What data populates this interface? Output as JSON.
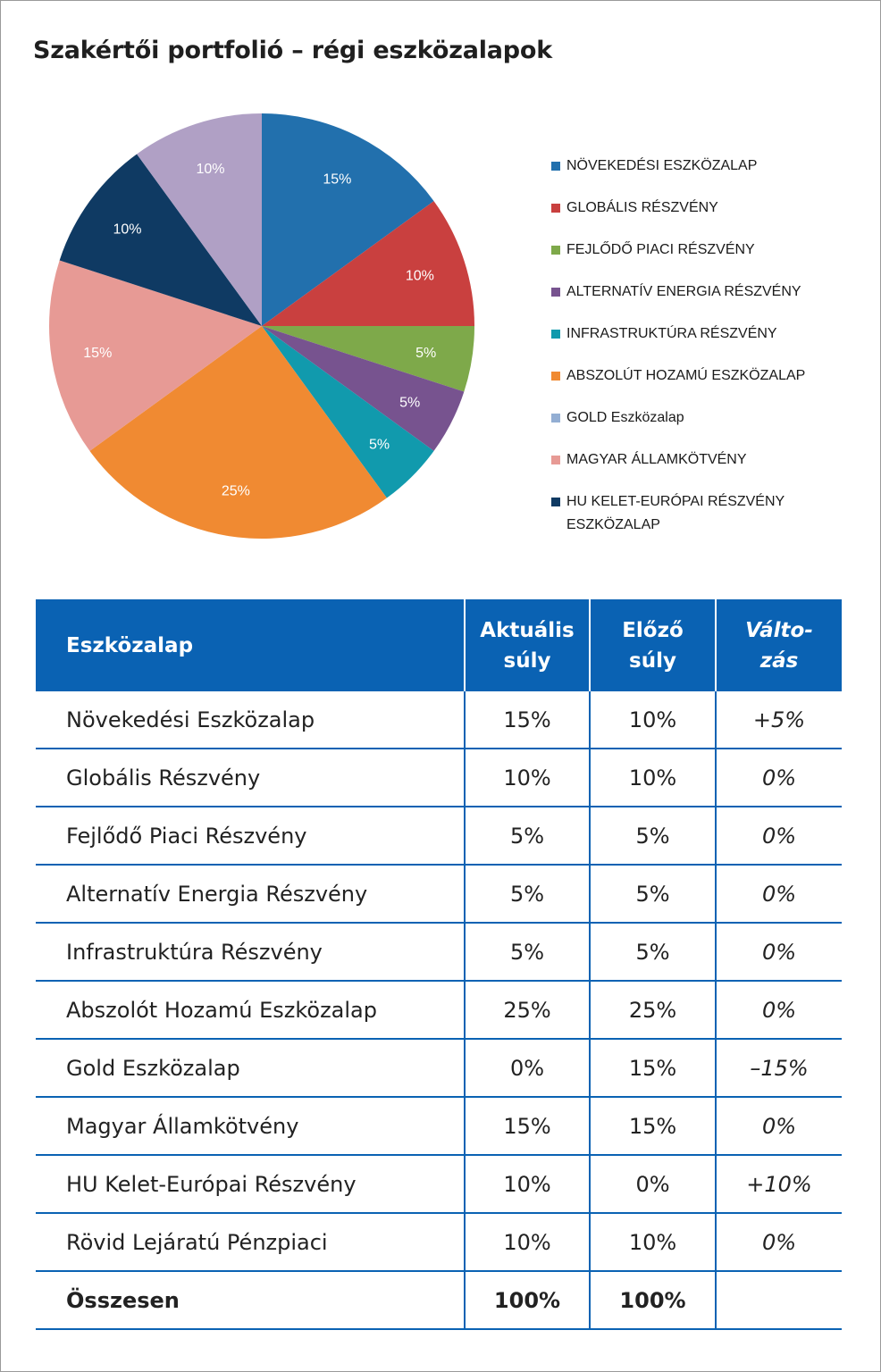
{
  "title": "Szakértői portfolió – régi eszközalapok",
  "chart_data": {
    "type": "pie",
    "start": "12 o'clock, clockwise",
    "slices": [
      {
        "label": "NÖVEKEDÉSI ESZKÖZALAP",
        "value": 15,
        "text": "15%",
        "color": "#2270ad"
      },
      {
        "label": "GLOBÁLIS RÉSZVÉNY",
        "value": 10,
        "text": "10%",
        "color": "#c9403f"
      },
      {
        "label": "FEJLŐDŐ PIACI RÉSZVÉNY",
        "value": 5,
        "text": "5%",
        "color": "#7ea94a"
      },
      {
        "label": "ALTERNATÍV ENERGIA RÉSZVÉNY",
        "value": 5,
        "text": "5%",
        "color": "#77538f"
      },
      {
        "label": "INFRASTRUKTÚRA RÉSZVÉNY",
        "value": 5,
        "text": "5%",
        "color": "#119aad"
      },
      {
        "label": "ABSZOLÚT HOZAMÚ ESZKÖZALAP",
        "value": 25,
        "text": "25%",
        "color": "#f08a32"
      },
      {
        "label": "GOLD Eszközalap",
        "value": 0,
        "text": "",
        "color": "#93aed3"
      },
      {
        "label": "MAGYAR ÁLLAMKÖTVÉNY",
        "value": 15,
        "text": "15%",
        "color": "#e79a95"
      },
      {
        "label": "HU KELET-EURÓPAI RÉSZVÉNY ESZKÖZALAP",
        "value": 10,
        "text": "10%",
        "color": "#0f3a63"
      },
      {
        "label": "",
        "value": 10,
        "text": "10%",
        "color": "#b0a0c5"
      }
    ],
    "legend": {
      "position": "right",
      "items": [
        {
          "line1": "NÖVEKEDÉSI ESZKÖZALAP",
          "line2": "",
          "color": "#2270ad"
        },
        {
          "line1": "GLOBÁLIS RÉSZVÉNY",
          "line2": "",
          "color": "#c9403f"
        },
        {
          "line1": "FEJLŐDŐ PIACI RÉSZVÉNY",
          "line2": "",
          "color": "#7ea94a"
        },
        {
          "line1": "ALTERNATÍV ENERGIA RÉSZVÉNY",
          "line2": "",
          "color": "#77538f"
        },
        {
          "line1": "INFRASTRUKTÚRA RÉSZVÉNY",
          "line2": "",
          "color": "#119aad"
        },
        {
          "line1": "ABSZOLÚT HOZAMÚ ESZKÖZALAP",
          "line2": "",
          "color": "#f08a32"
        },
        {
          "line1": "GOLD Eszközalap",
          "line2": "",
          "color": "#93aed3"
        },
        {
          "line1": "MAGYAR ÁLLAMKÖTVÉNY",
          "line2": "",
          "color": "#e79a95"
        },
        {
          "line1": "HU KELET-EURÓPAI RÉSZVÉNY",
          "line2": "ESZKÖZALAP",
          "color": "#0f3a63"
        }
      ]
    }
  },
  "table": {
    "headers": {
      "name": "Eszközalap",
      "current_line1": "Aktuális",
      "current_line2": "súly",
      "previous_line1": "Előző",
      "previous_line2": "súly",
      "change_line1": "Válto-",
      "change_line2": "zás"
    },
    "rows": [
      {
        "name": "Növekedési Eszközalap",
        "current": "15%",
        "previous": "10%",
        "change": "+5%"
      },
      {
        "name": "Globális Részvény",
        "current": "10%",
        "previous": "10%",
        "change": "0%"
      },
      {
        "name": "Fejlődő Piaci Részvény",
        "current": "5%",
        "previous": "5%",
        "change": "0%"
      },
      {
        "name": "Alternatív Energia Részvény",
        "current": "5%",
        "previous": "5%",
        "change": "0%"
      },
      {
        "name": "Infrastruktúra Részvény",
        "current": "5%",
        "previous": "5%",
        "change": "0%"
      },
      {
        "name": "Abszolót Hozamú Eszközalap",
        "current": "25%",
        "previous": "25%",
        "change": "0%"
      },
      {
        "name": "Gold Eszközalap",
        "current": "0%",
        "previous": "15%",
        "change": "–15%"
      },
      {
        "name": "Magyar Államkötvény",
        "current": "15%",
        "previous": "15%",
        "change": "0%"
      },
      {
        "name": "HU Kelet-Európai Részvény",
        "current": "10%",
        "previous": "0%",
        "change": "+10%"
      },
      {
        "name": "Rövid Lejáratú Pénzpiaci",
        "current": "10%",
        "previous": "10%",
        "change": "0%"
      }
    ],
    "total": {
      "name": "Összesen",
      "current": "100%",
      "previous": "100%",
      "change": ""
    }
  }
}
